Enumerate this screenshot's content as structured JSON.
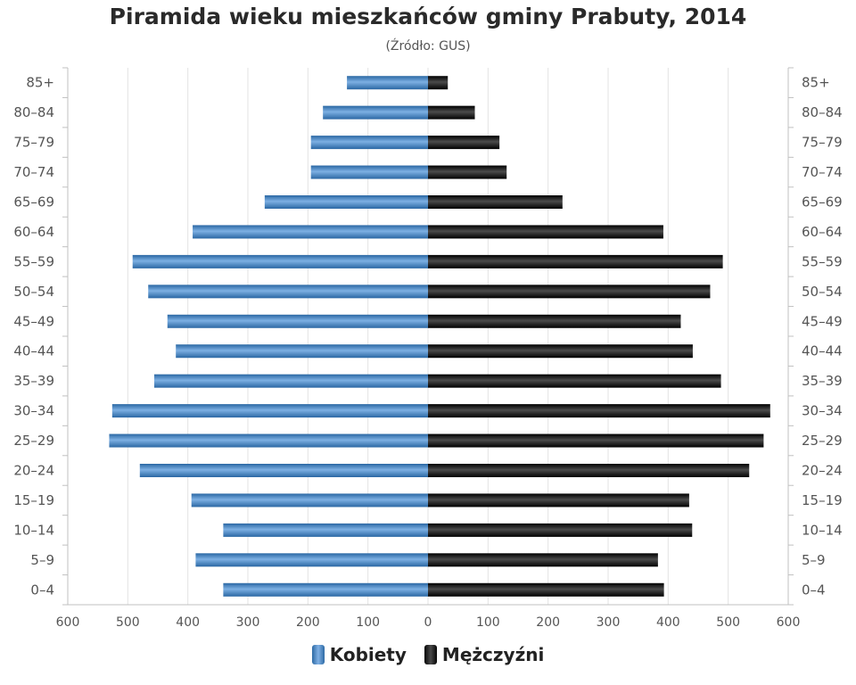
{
  "chart_data": {
    "type": "bar",
    "title": "Piramida wieku mieszkańców gminy Prabuty, 2014",
    "subtitle": "(Źródło: GUS)",
    "categories": [
      "85+",
      "80–84",
      "75–79",
      "70–74",
      "65–69",
      "60–64",
      "55–59",
      "50–54",
      "45–49",
      "40–44",
      "35–39",
      "30–34",
      "25–29",
      "20–24",
      "15–19",
      "10–14",
      "5–9",
      "0–4"
    ],
    "series": [
      {
        "name": "Kobiety",
        "color": "#3d7ab8",
        "values": [
          135,
          175,
          195,
          195,
          272,
          392,
          492,
          466,
          434,
          420,
          456,
          526,
          531,
          480,
          394,
          341,
          387,
          341
        ]
      },
      {
        "name": "Mężczyźni",
        "color": "#111111",
        "values": [
          33,
          78,
          119,
          131,
          224,
          392,
          491,
          470,
          421,
          441,
          488,
          570,
          559,
          535,
          435,
          440,
          383,
          393
        ]
      }
    ],
    "xlim": [
      -600,
      600
    ],
    "x_ticks": [
      "600",
      "500",
      "400",
      "300",
      "200",
      "100",
      "0",
      "100",
      "200",
      "300",
      "400",
      "500",
      "600"
    ],
    "grid": "vertical",
    "legend_position": "bottom-center"
  }
}
